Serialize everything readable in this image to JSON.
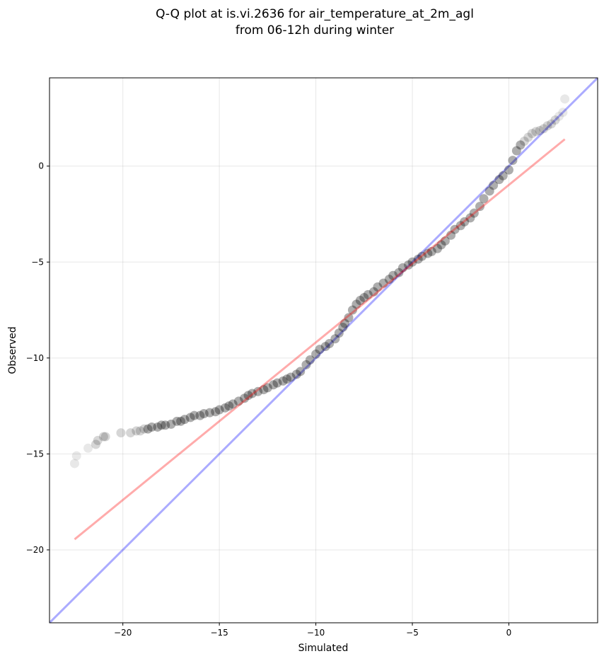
{
  "chart_data": {
    "type": "scatter",
    "title_line1": "Q-Q plot at is.vi.2636 for air_temperature_at_2m_agl",
    "title_line2": "from 06-12h during winter",
    "xlabel": "Simulated",
    "ylabel": "Observed",
    "xlim": [
      -23.8,
      4.6
    ],
    "ylim": [
      -23.8,
      4.6
    ],
    "x_ticks": [
      -20,
      -15,
      -10,
      -5,
      0
    ],
    "y_ticks": [
      0,
      -5,
      -10,
      -15,
      -20
    ],
    "x_tick_labels": [
      "−20",
      "−15",
      "−10",
      "−5",
      "0"
    ],
    "y_tick_labels": [
      "0",
      "−5",
      "−10",
      "−15",
      "−20"
    ],
    "grid": true,
    "colors": {
      "points": "#000000",
      "identity_line": "#0000ff",
      "fit_line": "#ff0000"
    },
    "identity_line": {
      "x": [
        -23.8,
        4.6
      ],
      "y": [
        -23.8,
        4.6
      ]
    },
    "fit_line": {
      "x": [
        -22.5,
        2.9
      ],
      "y": [
        -19.45,
        1.4
      ]
    },
    "points": {
      "x": [
        -22.5,
        -22.4,
        -21.8,
        -21.4,
        -21.3,
        -21.0,
        -20.9,
        -20.1,
        -19.6,
        -19.3,
        -19.1,
        -18.9,
        -18.7,
        -18.5,
        -18.2,
        -18.0,
        -17.8,
        -17.5,
        -17.2,
        -17.0,
        -16.8,
        -16.5,
        -16.3,
        -16.0,
        -15.8,
        -15.5,
        -15.2,
        -15.0,
        -14.7,
        -14.5,
        -14.3,
        -14.0,
        -13.7,
        -13.5,
        -13.3,
        -13.0,
        -12.7,
        -12.5,
        -12.2,
        -12.0,
        -11.7,
        -11.5,
        -11.3,
        -11.0,
        -10.8,
        -10.5,
        -10.3,
        -10.0,
        -9.8,
        -9.5,
        -9.3,
        -9.0,
        -8.8,
        -8.6,
        -8.5,
        -8.3,
        -8.1,
        -7.9,
        -7.7,
        -7.5,
        -7.3,
        -7.0,
        -6.8,
        -6.5,
        -6.2,
        -6.0,
        -5.7,
        -5.5,
        -5.2,
        -5.0,
        -4.7,
        -4.5,
        -4.2,
        -4.0,
        -3.7,
        -3.5,
        -3.3,
        -3.0,
        -2.8,
        -2.5,
        -2.3,
        -2.0,
        -1.8,
        -1.5,
        -1.3,
        -1.0,
        -0.8,
        -0.5,
        -0.3,
        0.0,
        0.2,
        0.4,
        0.6,
        0.8,
        1.0,
        1.2,
        1.4,
        1.6,
        1.8,
        2.0,
        2.2,
        2.4,
        2.6,
        2.8,
        2.9
      ],
      "y": [
        -15.5,
        -15.1,
        -14.7,
        -14.5,
        -14.3,
        -14.1,
        -14.1,
        -13.9,
        -13.9,
        -13.8,
        -13.8,
        -13.7,
        -13.7,
        -13.6,
        -13.6,
        -13.5,
        -13.5,
        -13.45,
        -13.3,
        -13.3,
        -13.2,
        -13.1,
        -13.0,
        -13.0,
        -12.9,
        -12.85,
        -12.8,
        -12.7,
        -12.6,
        -12.5,
        -12.4,
        -12.25,
        -12.1,
        -11.95,
        -11.85,
        -11.75,
        -11.65,
        -11.55,
        -11.4,
        -11.3,
        -11.2,
        -11.1,
        -11.0,
        -10.85,
        -10.7,
        -10.35,
        -10.1,
        -9.8,
        -9.55,
        -9.4,
        -9.25,
        -9.0,
        -8.7,
        -8.4,
        -8.2,
        -7.9,
        -7.5,
        -7.2,
        -7.0,
        -6.85,
        -6.7,
        -6.55,
        -6.3,
        -6.1,
        -5.9,
        -5.7,
        -5.55,
        -5.3,
        -5.15,
        -5.0,
        -4.85,
        -4.7,
        -4.55,
        -4.45,
        -4.3,
        -4.1,
        -3.9,
        -3.6,
        -3.3,
        -3.1,
        -2.9,
        -2.7,
        -2.45,
        -2.1,
        -1.7,
        -1.3,
        -1.0,
        -0.7,
        -0.5,
        -0.2,
        0.3,
        0.8,
        1.1,
        1.3,
        1.5,
        1.7,
        1.8,
        1.85,
        1.95,
        2.1,
        2.2,
        2.4,
        2.6,
        2.8,
        3.5
      ]
    }
  }
}
